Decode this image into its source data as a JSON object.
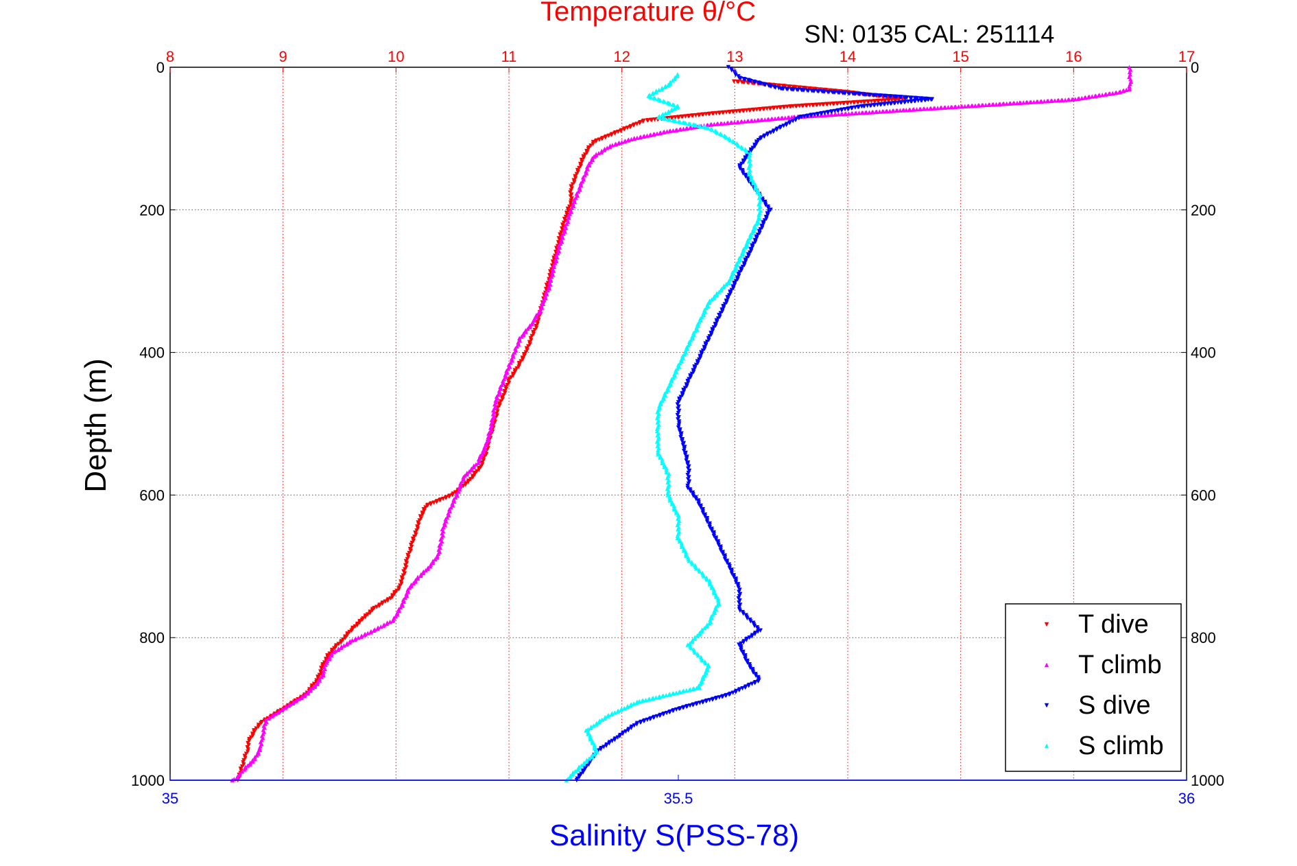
{
  "chart_data": {
    "type": "scatter",
    "title": "Temperature θ/°C",
    "subtitle": "SN: 0135  CAL: 251114",
    "ylabel": "Depth (m)",
    "xlabel_bottom": "Salinity S(PSS-78)",
    "colors": {
      "temperature_axis": "#ff0000",
      "salinity_axis": "#0000ff",
      "t_dive": "#ff0000",
      "t_climb": "#ff00ff",
      "s_dive": "#0000ff",
      "s_climb": "#00ffff"
    },
    "top_axis": {
      "label": "Temperature θ/°C",
      "range": [
        8,
        17
      ],
      "ticks": [
        "8",
        "9",
        "10",
        "11",
        "12",
        "13",
        "14",
        "15",
        "16",
        "17"
      ]
    },
    "bottom_axis": {
      "label": "Salinity S(PSS-78)",
      "range": [
        35,
        36
      ],
      "ticks": [
        "35",
        "35.5",
        "36"
      ]
    },
    "y_axis": {
      "range": [
        0,
        1000
      ],
      "reversed": true,
      "ticks": [
        "0",
        "200",
        "400",
        "600",
        "800",
        "1000"
      ],
      "ticks_right": [
        "0",
        "200",
        "400",
        "600",
        "800",
        "1000"
      ]
    },
    "grid": true,
    "legend_position": "bottom-right",
    "legend": [
      {
        "name": "T dive",
        "marker": "▾"
      },
      {
        "name": "T climb",
        "marker": "▴"
      },
      {
        "name": "S dive",
        "marker": "▾"
      },
      {
        "name": "S climb",
        "marker": "▴"
      }
    ],
    "series": [
      {
        "name": "T dive",
        "axis": "temperature",
        "marker": "down-triangle",
        "points": [
          [
            13.0,
            20
          ],
          [
            14.0,
            35
          ],
          [
            14.5,
            45
          ],
          [
            13.5,
            55
          ],
          [
            12.8,
            65
          ],
          [
            12.2,
            75
          ],
          [
            12.05,
            85
          ],
          [
            11.9,
            95
          ],
          [
            11.75,
            105
          ],
          [
            11.7,
            115
          ],
          [
            11.65,
            130
          ],
          [
            11.6,
            150
          ],
          [
            11.55,
            170
          ],
          [
            11.55,
            190
          ],
          [
            11.5,
            210
          ],
          [
            11.45,
            240
          ],
          [
            11.4,
            270
          ],
          [
            11.35,
            300
          ],
          [
            11.3,
            330
          ],
          [
            11.25,
            360
          ],
          [
            11.2,
            380
          ],
          [
            11.15,
            400
          ],
          [
            11.08,
            420
          ],
          [
            11.0,
            440
          ],
          [
            10.95,
            460
          ],
          [
            10.9,
            480
          ],
          [
            10.87,
            500
          ],
          [
            10.83,
            520
          ],
          [
            10.8,
            540
          ],
          [
            10.75,
            560
          ],
          [
            10.65,
            580
          ],
          [
            10.5,
            600
          ],
          [
            10.27,
            615
          ],
          [
            10.22,
            630
          ],
          [
            10.18,
            650
          ],
          [
            10.14,
            670
          ],
          [
            10.1,
            690
          ],
          [
            10.07,
            710
          ],
          [
            10.03,
            730
          ],
          [
            9.95,
            745
          ],
          [
            9.8,
            760
          ],
          [
            9.7,
            775
          ],
          [
            9.6,
            790
          ],
          [
            9.52,
            805
          ],
          [
            9.45,
            815
          ],
          [
            9.4,
            825
          ],
          [
            9.35,
            840
          ],
          [
            9.33,
            850
          ],
          [
            9.3,
            860
          ],
          [
            9.25,
            870
          ],
          [
            9.2,
            880
          ],
          [
            9.1,
            890
          ],
          [
            9.0,
            900
          ],
          [
            8.9,
            910
          ],
          [
            8.8,
            920
          ],
          [
            8.75,
            930
          ],
          [
            8.7,
            945
          ],
          [
            8.68,
            960
          ],
          [
            8.65,
            975
          ],
          [
            8.62,
            990
          ],
          [
            8.6,
            1000
          ]
        ]
      },
      {
        "name": "T climb",
        "axis": "temperature",
        "marker": "up-triangle",
        "points": [
          [
            16.5,
            0
          ],
          [
            16.5,
            10
          ],
          [
            16.5,
            20
          ],
          [
            16.5,
            30
          ],
          [
            16.4,
            35
          ],
          [
            16.0,
            45
          ],
          [
            15.5,
            50
          ],
          [
            15.0,
            55
          ],
          [
            14.5,
            60
          ],
          [
            13.5,
            70
          ],
          [
            12.8,
            80
          ],
          [
            12.4,
            90
          ],
          [
            12.1,
            100
          ],
          [
            11.9,
            110
          ],
          [
            11.75,
            125
          ],
          [
            11.7,
            140
          ],
          [
            11.65,
            160
          ],
          [
            11.6,
            180
          ],
          [
            11.55,
            200
          ],
          [
            11.5,
            225
          ],
          [
            11.45,
            250
          ],
          [
            11.4,
            280
          ],
          [
            11.35,
            310
          ],
          [
            11.28,
            340
          ],
          [
            11.2,
            360
          ],
          [
            11.1,
            380
          ],
          [
            11.05,
            400
          ],
          [
            11.0,
            420
          ],
          [
            10.95,
            440
          ],
          [
            10.88,
            470
          ],
          [
            10.85,
            500
          ],
          [
            10.8,
            530
          ],
          [
            10.72,
            555
          ],
          [
            10.6,
            575
          ],
          [
            10.55,
            595
          ],
          [
            10.48,
            620
          ],
          [
            10.42,
            645
          ],
          [
            10.4,
            665
          ],
          [
            10.37,
            685
          ],
          [
            10.3,
            700
          ],
          [
            10.2,
            715
          ],
          [
            10.12,
            730
          ],
          [
            10.05,
            755
          ],
          [
            9.98,
            775
          ],
          [
            9.8,
            790
          ],
          [
            9.6,
            805
          ],
          [
            9.45,
            820
          ],
          [
            9.38,
            835
          ],
          [
            9.36,
            850
          ],
          [
            9.3,
            865
          ],
          [
            9.2,
            880
          ],
          [
            9.05,
            895
          ],
          [
            8.95,
            905
          ],
          [
            8.85,
            915
          ],
          [
            8.82,
            935
          ],
          [
            8.8,
            955
          ],
          [
            8.75,
            970
          ],
          [
            8.65,
            985
          ],
          [
            8.6,
            995
          ],
          [
            8.55,
            1000
          ]
        ]
      },
      {
        "name": "S dive",
        "axis": "salinity",
        "marker": "down-triangle",
        "points": [
          [
            35.55,
            0
          ],
          [
            35.56,
            15
          ],
          [
            35.6,
            30
          ],
          [
            35.75,
            45
          ],
          [
            35.68,
            55
          ],
          [
            35.62,
            70
          ],
          [
            35.6,
            85
          ],
          [
            35.58,
            100
          ],
          [
            35.57,
            120
          ],
          [
            35.56,
            140
          ],
          [
            35.57,
            160
          ],
          [
            35.58,
            180
          ],
          [
            35.59,
            200
          ],
          [
            35.58,
            230
          ],
          [
            35.57,
            260
          ],
          [
            35.56,
            290
          ],
          [
            35.55,
            320
          ],
          [
            35.54,
            350
          ],
          [
            35.53,
            380
          ],
          [
            35.52,
            410
          ],
          [
            35.51,
            440
          ],
          [
            35.5,
            470
          ],
          [
            35.5,
            500
          ],
          [
            35.505,
            530
          ],
          [
            35.51,
            560
          ],
          [
            35.51,
            590
          ],
          [
            35.52,
            610
          ],
          [
            35.53,
            640
          ],
          [
            35.54,
            670
          ],
          [
            35.55,
            700
          ],
          [
            35.56,
            730
          ],
          [
            35.56,
            760
          ],
          [
            35.58,
            790
          ],
          [
            35.56,
            810
          ],
          [
            35.57,
            840
          ],
          [
            35.58,
            860
          ],
          [
            35.55,
            880
          ],
          [
            35.5,
            900
          ],
          [
            35.46,
            920
          ],
          [
            35.44,
            940
          ],
          [
            35.42,
            960
          ],
          [
            35.41,
            980
          ],
          [
            35.4,
            1000
          ]
        ]
      },
      {
        "name": "S climb",
        "axis": "salinity",
        "marker": "up-triangle",
        "points": [
          [
            35.5,
            10
          ],
          [
            35.49,
            25
          ],
          [
            35.47,
            40
          ],
          [
            35.5,
            55
          ],
          [
            35.48,
            70
          ],
          [
            35.53,
            85
          ],
          [
            35.55,
            100
          ],
          [
            35.57,
            120
          ],
          [
            35.57,
            150
          ],
          [
            35.58,
            180
          ],
          [
            35.58,
            210
          ],
          [
            35.57,
            240
          ],
          [
            35.56,
            270
          ],
          [
            35.55,
            300
          ],
          [
            35.53,
            330
          ],
          [
            35.52,
            360
          ],
          [
            35.51,
            390
          ],
          [
            35.5,
            420
          ],
          [
            35.49,
            450
          ],
          [
            35.48,
            480
          ],
          [
            35.48,
            510
          ],
          [
            35.48,
            540
          ],
          [
            35.49,
            570
          ],
          [
            35.49,
            600
          ],
          [
            35.5,
            630
          ],
          [
            35.5,
            660
          ],
          [
            35.51,
            690
          ],
          [
            35.53,
            720
          ],
          [
            35.54,
            750
          ],
          [
            35.53,
            780
          ],
          [
            35.51,
            810
          ],
          [
            35.53,
            840
          ],
          [
            35.52,
            870
          ],
          [
            35.46,
            890
          ],
          [
            35.43,
            910
          ],
          [
            35.41,
            930
          ],
          [
            35.42,
            960
          ],
          [
            35.4,
            985
          ],
          [
            35.39,
            1000
          ]
        ]
      }
    ]
  }
}
